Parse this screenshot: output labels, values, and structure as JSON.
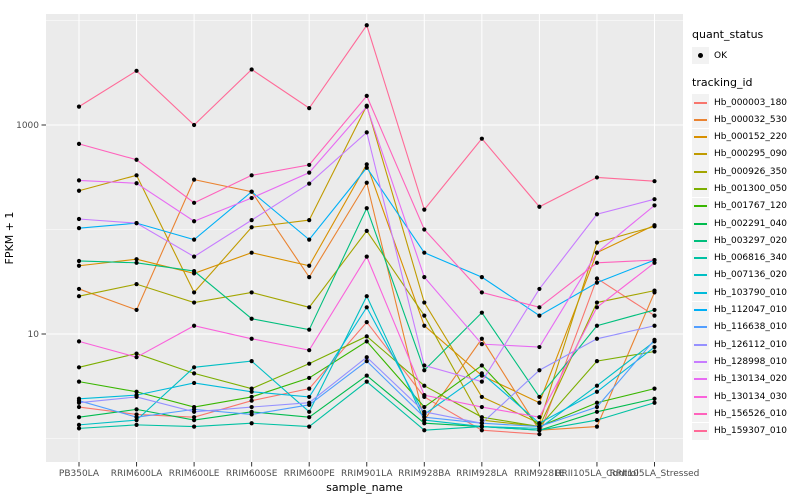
{
  "colors": {
    "panel_bg": "#EBEBEB",
    "grid": "#FFFFFF",
    "axis_text": "#4D4D4D",
    "axis_title": "#000000",
    "marker": "#000000",
    "legend_key_bg": "#F2F2F2"
  },
  "chart_data": {
    "type": "line",
    "title": "",
    "xlabel": "sample_name",
    "ylabel": "FPKM + 1",
    "y_scale": "log10",
    "grid": true,
    "legend_position": "right",
    "marker": "black point on every observation",
    "y_ticks": [
      {
        "value": 1000,
        "label": "1000"
      },
      {
        "value": 10,
        "label": "10"
      }
    ],
    "y_minor_values": [
      10000,
      100,
      1
    ],
    "categories": [
      "PB350LA",
      "RRIM600LA",
      "RRIM600LE",
      "RRIM600SE",
      "RRIM600PE",
      "RRIM901LA",
      "RRIM928BA",
      "RRIM928LA",
      "RRIM928LE",
      "RRII105LA_Control",
      "RRII105LA_Stressed"
    ],
    "quant_status": {
      "title": "quant_status",
      "items": [
        "OK"
      ]
    },
    "tracking_title": "tracking_id",
    "series": [
      {
        "name": "Hb_000003_180",
        "color": "#F8766D",
        "values": [
          2.0,
          1.7,
          1.6,
          2.3,
          3.0,
          13,
          2.5,
          1.2,
          1.1,
          34,
          15
        ]
      },
      {
        "name": "Hb_000032_530",
        "color": "#EA8331",
        "values": [
          27,
          17,
          300,
          230,
          35,
          280,
          1.5,
          9,
          1.2,
          1.3,
          25
        ]
      },
      {
        "name": "Hb_000152_220",
        "color": "#D89000",
        "values": [
          45,
          52,
          38,
          60,
          45,
          420,
          12,
          4.0,
          2.2,
          60,
          110
        ]
      },
      {
        "name": "Hb_000295_090",
        "color": "#C09B00",
        "values": [
          235,
          330,
          25,
          105,
          123,
          1530,
          20,
          2.5,
          1.4,
          75,
          107
        ]
      },
      {
        "name": "Hb_000926_350",
        "color": "#A3A500",
        "values": [
          23,
          30,
          20,
          25,
          18,
          97,
          15,
          1.5,
          1.3,
          20,
          26
        ]
      },
      {
        "name": "Hb_001300_050",
        "color": "#7CAE00",
        "values": [
          4.8,
          6.5,
          4.2,
          3.0,
          5.2,
          9.5,
          3.2,
          1.6,
          1.3,
          5.5,
          6.8
        ]
      },
      {
        "name": "Hb_001767_120",
        "color": "#39B600",
        "values": [
          3.5,
          2.8,
          2.0,
          2.5,
          3.8,
          8.5,
          2.0,
          5.0,
          1.3,
          2.2,
          3.0
        ]
      },
      {
        "name": "Hb_002291_040",
        "color": "#00BB4E",
        "values": [
          1.6,
          1.9,
          1.5,
          1.8,
          1.6,
          4.0,
          1.4,
          1.3,
          1.2,
          1.8,
          2.4
        ]
      },
      {
        "name": "Hb_003297_020",
        "color": "#00BF7D",
        "values": [
          50,
          48,
          40,
          14,
          11,
          160,
          4.5,
          16,
          2.5,
          12,
          17
        ]
      },
      {
        "name": "Hb_006816_340",
        "color": "#00C1A3",
        "values": [
          1.25,
          1.35,
          1.3,
          1.4,
          1.3,
          3.5,
          1.2,
          1.3,
          1.2,
          1.5,
          2.2
        ]
      },
      {
        "name": "Hb_007136_020",
        "color": "#00BFC4",
        "values": [
          1.35,
          1.5,
          4.8,
          5.5,
          1.8,
          23,
          1.5,
          1.3,
          1.25,
          3.2,
          8.5
        ]
      },
      {
        "name": "Hb_103790_010",
        "color": "#00BBDA",
        "values": [
          2.4,
          2.6,
          3.4,
          2.8,
          2.5,
          18,
          1.7,
          4.2,
          1.4,
          2.8,
          7.5
        ]
      },
      {
        "name": "Hb_112047_010",
        "color": "#00B0F6",
        "values": [
          103,
          115,
          80,
          230,
          80,
          390,
          60,
          35,
          15,
          31,
          51
        ]
      },
      {
        "name": "Hb_116638_010",
        "color": "#529EFF",
        "values": [
          2.3,
          1.6,
          1.9,
          1.7,
          2.1,
          5.5,
          1.6,
          1.4,
          1.3,
          2.0,
          8.8
        ]
      },
      {
        "name": "Hb_126112_010",
        "color": "#9590FF",
        "values": [
          2.2,
          2.5,
          1.8,
          2.0,
          2.2,
          6.0,
          1.8,
          1.4,
          4.5,
          9.0,
          12
        ]
      },
      {
        "name": "Hb_128998_010",
        "color": "#C77CFF",
        "values": [
          126,
          115,
          55,
          123,
          275,
          850,
          5.0,
          3.5,
          27,
          140,
          195
        ]
      },
      {
        "name": "Hb_130134_020",
        "color": "#E76BF3",
        "values": [
          295,
          277,
          120,
          200,
          350,
          1500,
          35,
          8.0,
          7.5,
          60,
          170
        ]
      },
      {
        "name": "Hb_130134_030",
        "color": "#FA62DB",
        "values": [
          8.5,
          6.0,
          12,
          9.0,
          7.0,
          55,
          2.6,
          2.0,
          1.6,
          18,
          48
        ]
      },
      {
        "name": "Hb_156526_010",
        "color": "#FF62BC",
        "values": [
          660,
          465,
          180,
          330,
          415,
          1900,
          100,
          25,
          18,
          48,
          51
        ]
      },
      {
        "name": "Hb_159307_010",
        "color": "#FF6A98",
        "values": [
          1500,
          3300,
          1000,
          3400,
          1450,
          9000,
          155,
          740,
          165,
          315,
          290
        ]
      }
    ]
  }
}
